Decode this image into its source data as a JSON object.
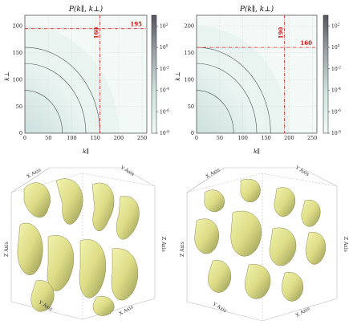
{
  "chart_data": [
    {
      "type": "heatmap",
      "title": "P(k∥, k⊥)",
      "xlabel": "k∥",
      "ylabel": "k⊥",
      "xlim": [
        0,
        260
      ],
      "ylim": [
        0,
        220
      ],
      "xticks": [
        0,
        50,
        100,
        150,
        200,
        250
      ],
      "yticks": [
        0,
        50,
        100,
        150,
        200
      ],
      "colorbar": {
        "scale": "log",
        "range": [
          1e-08,
          1000.0
        ],
        "ticks": [
          "10^2",
          "10^0",
          "10^-2",
          "10^-4",
          "10^-6",
          "10^-8"
        ],
        "tick_exponents": [
          2,
          0,
          -2,
          -4,
          -6,
          -8
        ]
      },
      "contour_levels_radius": [
        80,
        130,
        160
      ],
      "cutoff_lines": {
        "k_par": 160,
        "k_perp": 195
      },
      "annotations": [
        {
          "text": "160",
          "position": "vertical-line-top"
        },
        {
          "text": "195",
          "position": "horizontal-line-right"
        }
      ],
      "grid": true,
      "colors": {
        "cutoff": "#dd2222",
        "low": "#e6f2ef",
        "high": "#707078"
      }
    },
    {
      "type": "heatmap",
      "title": "P(k∥, k⊥)",
      "xlabel": "k∥",
      "ylabel": "k⊥",
      "xlim": [
        0,
        260
      ],
      "ylim": [
        0,
        220
      ],
      "xticks": [
        0,
        50,
        100,
        150,
        200,
        250
      ],
      "yticks": [
        0,
        50,
        100,
        150,
        200
      ],
      "colorbar": {
        "scale": "log",
        "range": [
          1e-08,
          1000.0
        ],
        "ticks": [
          "10^2",
          "10^0",
          "10^-2",
          "10^-4",
          "10^-6",
          "10^-8"
        ],
        "tick_exponents": [
          2,
          0,
          -2,
          -4,
          -6,
          -8
        ]
      },
      "contour_levels_radius": [
        80,
        130,
        160
      ],
      "cutoff_lines": {
        "k_par": 190,
        "k_perp": 160
      },
      "annotations": [
        {
          "text": "190",
          "position": "vertical-line-top"
        },
        {
          "text": "160",
          "position": "horizontal-line-right"
        }
      ],
      "grid": true,
      "colors": {
        "cutoff": "#dd2222",
        "low": "#e6f2ef",
        "high": "#707078"
      }
    }
  ],
  "volumes": [
    {
      "axis_labels": {
        "x": "X Axis",
        "y": "Y Axis",
        "z": "Z Axis"
      },
      "surface_color": "#e4e490"
    },
    {
      "axis_labels": {
        "x": "X Axis",
        "y": "Y Axis",
        "z": "Z Axis"
      },
      "surface_color": "#e4e490"
    }
  ]
}
